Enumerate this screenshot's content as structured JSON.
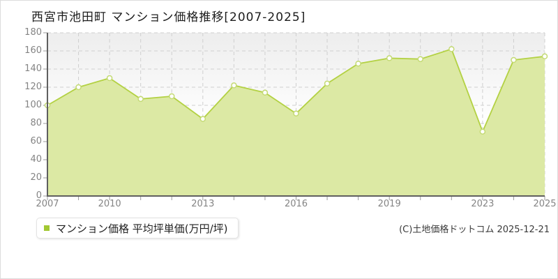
{
  "title": "西宮市池田町 マンション価格推移[2007-2025]",
  "legend": {
    "label": "マンション価格 平均坪単価(万円/坪)",
    "swatch_color": "#a2c832"
  },
  "footer": {
    "copyright": "(C)土地価格ドットコム 2025-12-21"
  },
  "chart_data": {
    "type": "area",
    "title": "西宮市池田町 マンション価格推移[2007-2025]",
    "series_name": "マンション価格 平均坪単価(万円/坪)",
    "ylabel": "万円/坪",
    "ylim": [
      0,
      180
    ],
    "y_ticks": [
      0,
      20,
      40,
      60,
      80,
      100,
      120,
      140,
      160,
      180
    ],
    "x_tick_labels": [
      "2007",
      "2010",
      "2013",
      "2016",
      "2019",
      "2023",
      "2025"
    ],
    "x_tick_positions": [
      0,
      2,
      5,
      8,
      11,
      14,
      16
    ],
    "values": [
      100,
      120,
      130,
      107,
      110,
      85,
      122,
      114,
      91,
      124,
      146,
      152,
      151,
      162,
      71,
      150,
      154
    ],
    "grid": true,
    "legend_position": "bottom-left",
    "colors": {
      "line": "#b3d143",
      "fill": "#dce9a4",
      "marker_fill": "#ffffff",
      "marker_stroke": "#c4da74",
      "gridline": "#cfcfcf",
      "axis": "#5f5f5f",
      "tick": "#9a9a9a",
      "plot_bg_top": "#ededed",
      "plot_bg_bottom": "#ffffff"
    }
  }
}
